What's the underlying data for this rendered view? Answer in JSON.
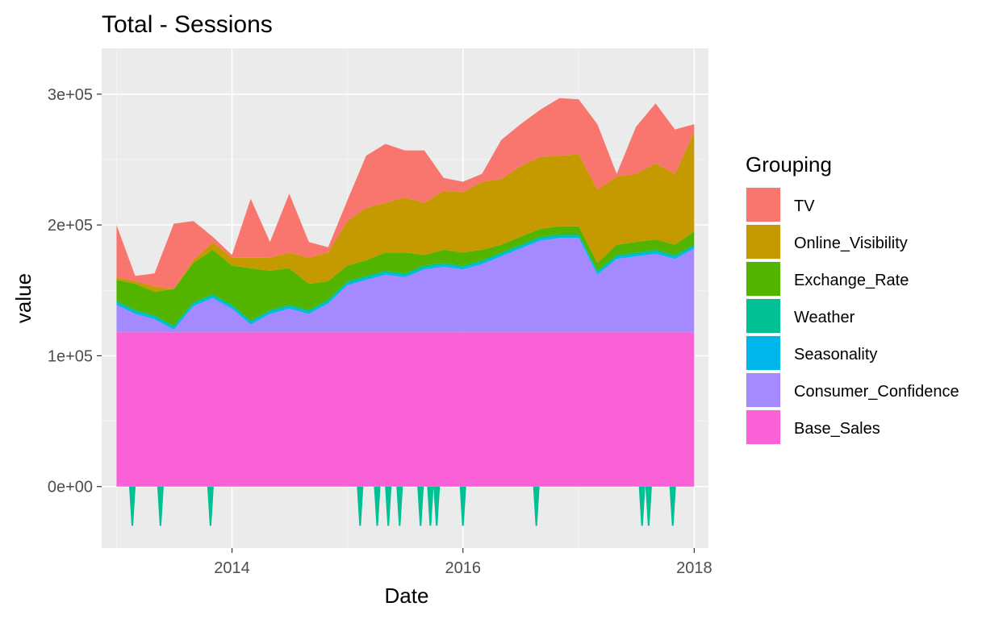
{
  "chart_data": {
    "type": "area",
    "stacked": true,
    "title": "Total - Sessions",
    "xlabel": "Date",
    "ylabel": "value",
    "x_range": [
      "2012-11-15",
      "2018-02-15"
    ],
    "ylim": [
      -47000,
      335000
    ],
    "x_ticks": [
      {
        "date": "2014-01-01",
        "label": "2014"
      },
      {
        "date": "2016-01-01",
        "label": "2016"
      },
      {
        "date": "2018-01-01",
        "label": "2018"
      }
    ],
    "y_ticks": [
      {
        "value": 0,
        "label": "0e+00"
      },
      {
        "value": 100000,
        "label": "1e+05"
      },
      {
        "value": 200000,
        "label": "2e+05"
      },
      {
        "value": 300000,
        "label": "3e+05"
      }
    ],
    "grid": true,
    "background": "#ebebeb",
    "legend": {
      "title": "Grouping",
      "position": "right",
      "items": [
        {
          "label": "TV",
          "color": "#F8766D"
        },
        {
          "label": "Online_Visibility",
          "color": "#C49A00"
        },
        {
          "label": "Exchange_Rate",
          "color": "#53B400"
        },
        {
          "label": "Weather",
          "color": "#00C094"
        },
        {
          "label": "Seasonality",
          "color": "#00B6EB"
        },
        {
          "label": "Consumer_Confidence",
          "color": "#A58AFF"
        },
        {
          "label": "Base_Sales",
          "color": "#FB61D7"
        }
      ]
    },
    "x": [
      "2013-01-01",
      "2013-03-01",
      "2013-05-01",
      "2013-07-01",
      "2013-09-01",
      "2013-11-01",
      "2014-01-01",
      "2014-03-01",
      "2014-05-01",
      "2014-07-01",
      "2014-09-01",
      "2014-11-01",
      "2015-01-01",
      "2015-03-01",
      "2015-05-01",
      "2015-07-01",
      "2015-09-01",
      "2015-11-01",
      "2016-01-01",
      "2016-03-01",
      "2016-05-01",
      "2016-07-01",
      "2016-09-01",
      "2016-11-01",
      "2017-01-01",
      "2017-03-01",
      "2017-05-01",
      "2017-07-01",
      "2017-09-01",
      "2017-11-01",
      "2018-01-01"
    ],
    "series": [
      {
        "name": "Base_Sales",
        "values": [
          118000,
          118000,
          118000,
          118000,
          118000,
          118000,
          118000,
          118000,
          118000,
          118000,
          118000,
          118000,
          118000,
          118000,
          118000,
          118000,
          118000,
          118000,
          118000,
          118000,
          118000,
          118000,
          118000,
          118000,
          118000,
          118000,
          118000,
          118000,
          118000,
          118000,
          118000
        ]
      },
      {
        "name": "Consumer_Confidence",
        "values": [
          21000,
          14000,
          10000,
          2000,
          20000,
          26000,
          18000,
          6000,
          14000,
          18000,
          14000,
          22000,
          36000,
          40000,
          44000,
          42000,
          48000,
          50000,
          48000,
          52000,
          58000,
          64000,
          70000,
          72000,
          72000,
          44000,
          56000,
          58000,
          60000,
          56000,
          64000
        ]
      },
      {
        "name": "Seasonality",
        "values": [
          1500,
          1500,
          1500,
          1500,
          1500,
          1500,
          1500,
          1500,
          1500,
          1500,
          1500,
          1500,
          1500,
          1500,
          1500,
          1500,
          1500,
          1500,
          1500,
          1500,
          1500,
          1500,
          1500,
          1500,
          1500,
          1500,
          1500,
          1500,
          1500,
          1500,
          1500
        ]
      },
      {
        "name": "Weather",
        "values": [
          1500,
          1500,
          1500,
          1500,
          1500,
          1500,
          1500,
          1500,
          1500,
          1500,
          1500,
          1500,
          1500,
          1500,
          1500,
          1500,
          1500,
          1500,
          1500,
          1500,
          1500,
          1500,
          1500,
          1500,
          1500,
          1500,
          1500,
          1500,
          1500,
          1500,
          1500
        ]
      },
      {
        "name": "Exchange_Rate",
        "values": [
          16000,
          20000,
          18000,
          28000,
          30000,
          34000,
          30000,
          40000,
          30000,
          28000,
          20000,
          14000,
          12000,
          12000,
          14000,
          16000,
          8000,
          10000,
          10000,
          8000,
          6000,
          6000,
          6000,
          6000,
          6000,
          6000,
          8000,
          8000,
          8000,
          8000,
          10000
        ]
      },
      {
        "name": "Online_Visibility",
        "values": [
          2000,
          2000,
          4000,
          0,
          2000,
          6000,
          6000,
          8000,
          10000,
          12000,
          20000,
          22000,
          34000,
          40000,
          38000,
          42000,
          40000,
          45000,
          46000,
          52000,
          50000,
          54000,
          55000,
          54000,
          55000,
          56000,
          52000,
          52000,
          58000,
          54000,
          76000
        ]
      },
      {
        "name": "TV",
        "values": [
          40000,
          4000,
          10000,
          50000,
          30000,
          4000,
          2000,
          45000,
          12000,
          45000,
          12000,
          4000,
          16000,
          40000,
          45000,
          36000,
          40000,
          10000,
          8000,
          6000,
          30000,
          32000,
          36000,
          44000,
          42000,
          50000,
          2000,
          36000,
          46000,
          34000,
          6000
        ]
      }
    ],
    "weather_dips": [
      {
        "date": "2013-02-20",
        "value": -30000
      },
      {
        "date": "2013-05-20",
        "value": -30000
      },
      {
        "date": "2013-10-25",
        "value": -30000
      },
      {
        "date": "2015-02-10",
        "value": -30000
      },
      {
        "date": "2015-04-05",
        "value": -30000
      },
      {
        "date": "2015-05-10",
        "value": -30000
      },
      {
        "date": "2015-06-15",
        "value": -30000
      },
      {
        "date": "2015-08-20",
        "value": -30000
      },
      {
        "date": "2015-09-20",
        "value": -30000
      },
      {
        "date": "2015-10-10",
        "value": -30000
      },
      {
        "date": "2016-01-01",
        "value": -30000
      },
      {
        "date": "2016-08-20",
        "value": -30000
      },
      {
        "date": "2017-07-20",
        "value": -30000
      },
      {
        "date": "2017-08-10",
        "value": -30000
      },
      {
        "date": "2017-10-25",
        "value": -30000
      }
    ]
  }
}
